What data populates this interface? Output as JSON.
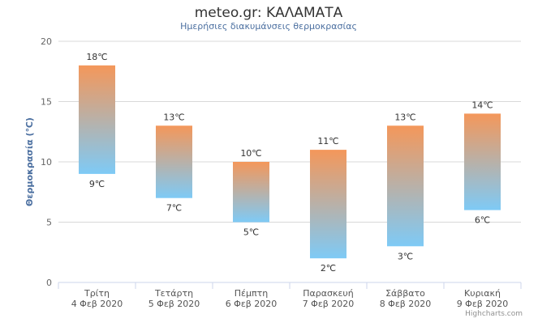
{
  "chart_data": {
    "type": "bar",
    "subtype": "columnrange",
    "title": "meteo.gr: ΚΑΛΑΜΑΤΑ",
    "subtitle": "Ημερήσιες διακυμάνσεις θερμοκρασίας",
    "ylabel": "Θερμοκρασία (℃)",
    "xlabel": "",
    "ylim": [
      0,
      20
    ],
    "yticks": [
      0,
      5,
      10,
      15,
      20
    ],
    "grid": true,
    "legend": "none",
    "categories": [
      [
        "Τρίτη",
        "4 Φεβ 2020"
      ],
      [
        "Τετάρτη",
        "5 Φεβ 2020"
      ],
      [
        "Πέμπτη",
        "6 Φεβ 2020"
      ],
      [
        "Παρασκευή",
        "7 Φεβ 2020"
      ],
      [
        "Σάββατο",
        "8 Φεβ 2020"
      ],
      [
        "Κυριακή",
        "9 Φεβ 2020"
      ]
    ],
    "low": [
      9,
      7,
      5,
      2,
      3,
      6
    ],
    "high": [
      18,
      13,
      10,
      11,
      13,
      14
    ],
    "unit_suffix": "℃",
    "colors": {
      "top": "#f4975a",
      "bottom": "#7ecaf6",
      "grid": "#d8d8d8",
      "axis": "#ccd6eb"
    }
  },
  "credits": "Highcharts.com"
}
